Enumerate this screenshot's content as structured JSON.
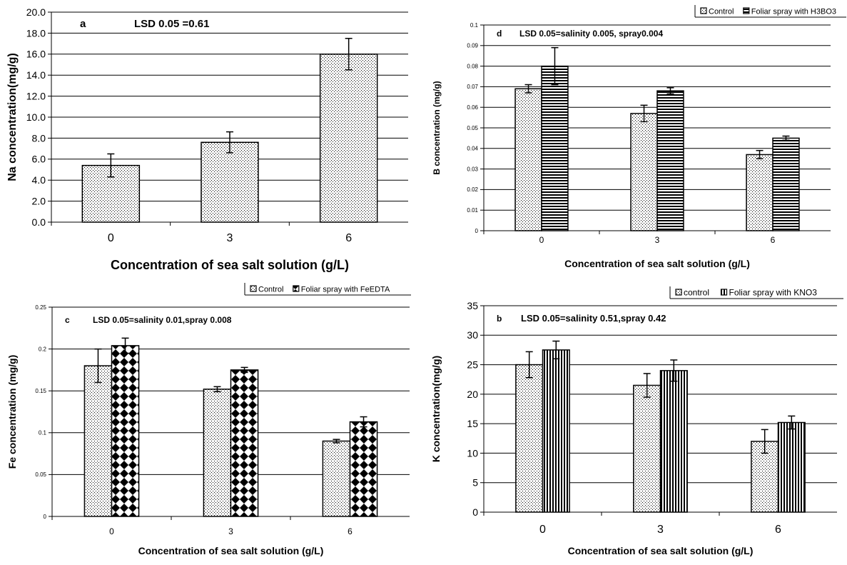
{
  "chart_data": [
    {
      "panel_id": "a",
      "type": "bar",
      "panel_letter": "a",
      "annotation": "LSD 0.05 =0.61",
      "categories": [
        "0",
        "3",
        "6"
      ],
      "series": [
        {
          "values": [
            5.4,
            7.6,
            16.0
          ],
          "errors": [
            1.1,
            1.0,
            1.5
          ],
          "pattern": "dots"
        }
      ],
      "ylim": [
        0,
        20
      ],
      "yticks": [
        "0.0",
        "2.0",
        "4.0",
        "6.0",
        "8.0",
        "10.0",
        "12.0",
        "14.0",
        "16.0",
        "18.0",
        "20.0"
      ],
      "ytick_step": 2,
      "xlabel": "Concentration of sea salt solution (g/L)",
      "ylabel": "Na concentration(mg/g)",
      "legend": null,
      "grid": true
    },
    {
      "panel_id": "d",
      "type": "bar",
      "panel_letter": "d",
      "annotation": "LSD 0.05=salinity 0.005, spray0.004",
      "categories": [
        "0",
        "3",
        "6"
      ],
      "series": [
        {
          "name": "Control",
          "values": [
            0.069,
            0.057,
            0.037
          ],
          "errors": [
            0.002,
            0.004,
            0.002
          ],
          "pattern": "dots"
        },
        {
          "name": "Foliar spray with H3BO3",
          "values": [
            0.08,
            0.068,
            0.045
          ],
          "errors": [
            0.009,
            0.0015,
            0.001
          ],
          "pattern": "hstripes"
        }
      ],
      "ylim": [
        0,
        0.1
      ],
      "yticks": [
        "0",
        "0.01",
        "0.02",
        "0.03",
        "0.04",
        "0.05",
        "0.06",
        "0.07",
        "0.08",
        "0.09",
        "0.1"
      ],
      "ytick_step": 0.01,
      "xlabel": "Concentration of sea salt solution (g/L)",
      "ylabel": "B concentration  (mg/g)",
      "legend": "top-right",
      "grid": true
    },
    {
      "panel_id": "c",
      "type": "bar",
      "panel_letter": "c",
      "annotation": "LSD 0.05=salinity 0.01,spray 0.008",
      "categories": [
        "0",
        "3",
        "6"
      ],
      "series": [
        {
          "name": "Control",
          "values": [
            0.18,
            0.152,
            0.09
          ],
          "errors": [
            0.02,
            0.003,
            0.002
          ],
          "pattern": "dots"
        },
        {
          "name": "Foliar spray with FeEDTA",
          "values": [
            0.204,
            0.175,
            0.113
          ],
          "errors": [
            0.009,
            0.003,
            0.006
          ],
          "pattern": "diamonds"
        }
      ],
      "ylim": [
        0,
        0.25
      ],
      "yticks": [
        "0",
        "0.05",
        "0.1",
        "0.15",
        "0.2",
        "0.25"
      ],
      "ytick_step": 0.05,
      "xlabel": "Concentration of sea salt solution (g/L)",
      "ylabel": "Fe concentration  (mg/g)",
      "legend": "top-right",
      "grid": true
    },
    {
      "panel_id": "b",
      "type": "bar",
      "panel_letter": "b",
      "annotation": "LSD 0.05=salinity 0.51,spray 0.42",
      "categories": [
        "0",
        "3",
        "6"
      ],
      "series": [
        {
          "name": "control",
          "values": [
            25.0,
            21.5,
            12.0
          ],
          "errors": [
            2.2,
            2.0,
            2.0
          ],
          "pattern": "dots"
        },
        {
          "name": "Foliar spray with KNO3",
          "values": [
            27.5,
            24.0,
            15.2
          ],
          "errors": [
            1.5,
            1.8,
            1.1
          ],
          "pattern": "vstripes"
        }
      ],
      "ylim": [
        0,
        35
      ],
      "yticks": [
        "0",
        "5",
        "10",
        "15",
        "20",
        "25",
        "30",
        "35"
      ],
      "ytick_step": 5,
      "xlabel": "Concentration of sea salt solution (g/L)",
      "ylabel": "K concentration(mg/g)",
      "legend": "top-right",
      "grid": true
    }
  ]
}
